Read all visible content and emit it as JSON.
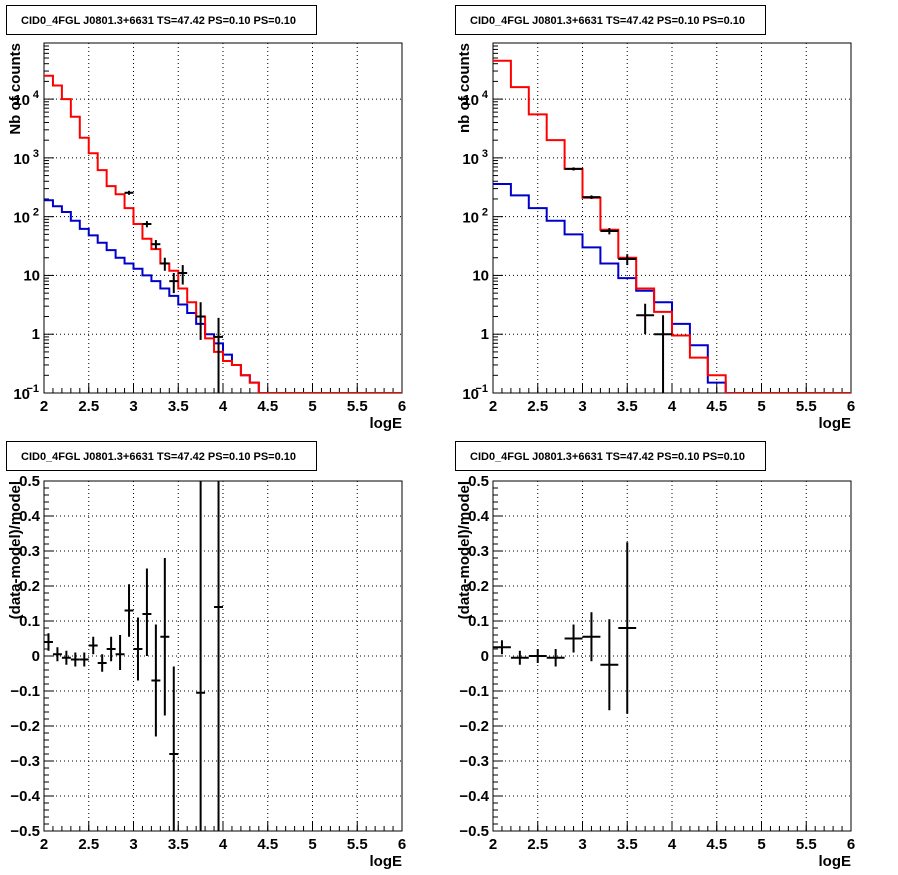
{
  "chart_data": [
    {
      "type": "line",
      "title": "CID0_4FGL J0801.3+6631 TS=47.42 PS=0.10 PS=0.10",
      "xlabel": "logE",
      "ylabel": "Nb of counts",
      "xlim": [
        2,
        6
      ],
      "ylim": [
        0.1,
        90000
      ],
      "log_y": true,
      "grid": true,
      "x_ticks": [
        "2",
        "2.5",
        "3",
        "3.5",
        "4",
        "4.5",
        "5",
        "5.5",
        "6"
      ],
      "y_ticks": [
        "10^-1",
        "1",
        "10",
        "10^2",
        "10^3",
        "10^4"
      ],
      "bin_edges": [
        2.0,
        2.1,
        2.2,
        2.3,
        2.4,
        2.5,
        2.6,
        2.7,
        2.8,
        2.9,
        3.0,
        3.1,
        3.2,
        3.3,
        3.4,
        3.5,
        3.6,
        3.7,
        3.8,
        3.9,
        4.0,
        4.1,
        4.2,
        4.3,
        4.4,
        4.5,
        4.6,
        4.7,
        4.8,
        4.9,
        5.0,
        5.1,
        5.2,
        5.3,
        5.4,
        5.5,
        5.6,
        5.7,
        5.8,
        5.9,
        6.0
      ],
      "series": [
        {
          "color": "#ff0000",
          "values": [
            25000,
            17000,
            10000,
            5000,
            2200,
            1200,
            620,
            330,
            240,
            140,
            75,
            42,
            28,
            16,
            12,
            6,
            3.5,
            2,
            0.85,
            0.5,
            0.35,
            0.3,
            0.2,
            0.15,
            0.1,
            0.1,
            0.1,
            0.1,
            0.1,
            0.1,
            0.1,
            0.1,
            0.1,
            0.1,
            0.1,
            0.1,
            0.1,
            0.1,
            0.1,
            0.1
          ]
        },
        {
          "color": "#0000cc",
          "values": [
            190,
            150,
            120,
            85,
            62,
            48,
            36,
            27,
            20,
            16,
            13,
            10,
            8,
            6,
            4.5,
            3.2,
            2.3,
            1.5,
            1.0,
            0.7,
            0.45,
            0.3,
            0.2,
            0.15,
            0.1,
            0.1,
            0.1,
            0.1,
            0.1,
            0.1,
            0.1,
            0.1,
            0.1,
            0.1,
            0.1,
            0.1,
            0.1,
            0.1,
            0.1,
            0.1
          ]
        }
      ],
      "points": [
        {
          "x": 2.95,
          "y": 255,
          "ylo": 235,
          "yhi": 275,
          "xerr": 0.05
        },
        {
          "x": 3.15,
          "y": 75,
          "ylo": 66,
          "yhi": 84,
          "xerr": 0.05
        },
        {
          "x": 3.25,
          "y": 34,
          "ylo": 28,
          "yhi": 40,
          "xerr": 0.05
        },
        {
          "x": 3.35,
          "y": 16,
          "ylo": 12,
          "yhi": 20,
          "xerr": 0.05
        },
        {
          "x": 3.45,
          "y": 8,
          "ylo": 5,
          "yhi": 11,
          "xerr": 0.05
        },
        {
          "x": 3.55,
          "y": 11,
          "ylo": 7,
          "yhi": 15,
          "xerr": 0.05
        },
        {
          "x": 3.75,
          "y": 2,
          "ylo": 0.8,
          "yhi": 3.5,
          "xerr": 0.05
        },
        {
          "x": 3.95,
          "y": 0.9,
          "ylo": 0.1,
          "yhi": 1.9,
          "xerr": 0.05
        }
      ]
    },
    {
      "type": "line",
      "title": "CID0_4FGL J0801.3+6631 TS=47.42 PS=0.10 PS=0.10",
      "xlabel": "logE",
      "ylabel": "nb of counts",
      "xlim": [
        2,
        6
      ],
      "ylim": [
        0.1,
        90000
      ],
      "log_y": true,
      "grid": true,
      "x_ticks": [
        "2",
        "2.5",
        "3",
        "3.5",
        "4",
        "4.5",
        "5",
        "5.5",
        "6"
      ],
      "y_ticks": [
        "10^-1",
        "1",
        "10",
        "10^2",
        "10^3",
        "10^4"
      ],
      "bin_edges": [
        2.0,
        2.2,
        2.4,
        2.6,
        2.8,
        3.0,
        3.2,
        3.4,
        3.6,
        3.8,
        4.0,
        4.2,
        4.4,
        4.6,
        4.8,
        5.0,
        5.2,
        5.4,
        5.6,
        5.8,
        6.0
      ],
      "series": [
        {
          "color": "#ff0000",
          "values": [
            45000,
            16000,
            5500,
            2000,
            650,
            210,
            60,
            20,
            6,
            2.4,
            0.95,
            0.4,
            0.2,
            0.1,
            0.1,
            0.1,
            0.1,
            0.1,
            0.1,
            0.1
          ]
        },
        {
          "color": "#0000cc",
          "values": [
            360,
            230,
            140,
            85,
            50,
            30,
            16,
            9,
            5.5,
            3.5,
            1.5,
            0.65,
            0.15,
            0.1,
            0.1,
            0.1,
            0.1,
            0.1,
            0.1,
            0.1
          ]
        }
      ],
      "points": [
        {
          "x": 2.9,
          "y": 650,
          "ylo": 610,
          "yhi": 690,
          "xerr": 0.1
        },
        {
          "x": 3.1,
          "y": 215,
          "ylo": 200,
          "yhi": 230,
          "xerr": 0.1
        },
        {
          "x": 3.3,
          "y": 57,
          "ylo": 50,
          "yhi": 64,
          "xerr": 0.1
        },
        {
          "x": 3.5,
          "y": 19,
          "ylo": 15,
          "yhi": 23,
          "xerr": 0.1
        },
        {
          "x": 3.7,
          "y": 2.1,
          "ylo": 1.0,
          "yhi": 3.3,
          "xerr": 0.1
        },
        {
          "x": 3.9,
          "y": 1.0,
          "ylo": 0.1,
          "yhi": 2.1,
          "xerr": 0.1
        }
      ]
    },
    {
      "type": "scatter",
      "title": "CID0_4FGL J0801.3+6631 TS=47.42 PS=0.10 PS=0.10",
      "xlabel": "logE",
      "ylabel": "(data-model)/model",
      "xlim": [
        2,
        6
      ],
      "ylim": [
        -0.5,
        0.5
      ],
      "log_y": false,
      "grid": true,
      "x_ticks": [
        "2",
        "2.5",
        "3",
        "3.5",
        "4",
        "4.5",
        "5",
        "5.5",
        "6"
      ],
      "y_ticks": [
        "−0.5",
        "−0.4",
        "−0.3",
        "−0.2",
        "−0.1",
        "0",
        "0.1",
        "0.2",
        "0.3",
        "0.4",
        "0.5"
      ],
      "points": [
        {
          "x": 2.05,
          "y": 0.04,
          "ylo": 0.015,
          "yhi": 0.065,
          "xerr": 0.05
        },
        {
          "x": 2.15,
          "y": 0.005,
          "ylo": -0.015,
          "yhi": 0.025,
          "xerr": 0.05
        },
        {
          "x": 2.25,
          "y": -0.005,
          "ylo": -0.025,
          "yhi": 0.015,
          "xerr": 0.05
        },
        {
          "x": 2.35,
          "y": -0.01,
          "ylo": -0.03,
          "yhi": 0.01,
          "xerr": 0.05
        },
        {
          "x": 2.45,
          "y": -0.01,
          "ylo": -0.03,
          "yhi": 0.01,
          "xerr": 0.05
        },
        {
          "x": 2.55,
          "y": 0.03,
          "ylo": 0.005,
          "yhi": 0.055,
          "xerr": 0.05
        },
        {
          "x": 2.65,
          "y": -0.02,
          "ylo": -0.045,
          "yhi": 0.005,
          "xerr": 0.05
        },
        {
          "x": 2.75,
          "y": 0.02,
          "ylo": -0.015,
          "yhi": 0.055,
          "xerr": 0.05
        },
        {
          "x": 2.85,
          "y": 0.005,
          "ylo": -0.04,
          "yhi": 0.06,
          "xerr": 0.05
        },
        {
          "x": 2.95,
          "y": 0.13,
          "ylo": 0.055,
          "yhi": 0.205,
          "xerr": 0.05
        },
        {
          "x": 3.05,
          "y": 0.02,
          "ylo": -0.07,
          "yhi": 0.11,
          "xerr": 0.05
        },
        {
          "x": 3.15,
          "y": 0.12,
          "ylo": 0.0,
          "yhi": 0.25,
          "xerr": 0.05
        },
        {
          "x": 3.25,
          "y": -0.07,
          "ylo": -0.23,
          "yhi": 0.09,
          "xerr": 0.05
        },
        {
          "x": 3.35,
          "y": 0.055,
          "ylo": -0.17,
          "yhi": 0.28,
          "xerr": 0.05
        },
        {
          "x": 3.45,
          "y": -0.28,
          "ylo": -0.5,
          "yhi": -0.03,
          "xerr": 0.05
        },
        {
          "x": 3.75,
          "y": -0.105,
          "ylo": -0.5,
          "yhi": 0.5,
          "xerr": 0.05
        },
        {
          "x": 3.95,
          "y": 0.14,
          "ylo": -0.5,
          "yhi": 0.5,
          "xerr": 0.05
        }
      ]
    },
    {
      "type": "scatter",
      "title": "CID0_4FGL J0801.3+6631 TS=47.42 PS=0.10 PS=0.10",
      "xlabel": "logE",
      "ylabel": "(data-model)/model",
      "xlim": [
        2,
        6
      ],
      "ylim": [
        -0.5,
        0.5
      ],
      "log_y": false,
      "grid": true,
      "x_ticks": [
        "2",
        "2.5",
        "3",
        "3.5",
        "4",
        "4.5",
        "5",
        "5.5",
        "6"
      ],
      "y_ticks": [
        "−0.5",
        "−0.4",
        "−0.3",
        "−0.2",
        "−0.1",
        "0",
        "0.1",
        "0.2",
        "0.3",
        "0.4",
        "0.5"
      ],
      "points": [
        {
          "x": 2.1,
          "y": 0.025,
          "ylo": 0.005,
          "yhi": 0.045,
          "xerr": 0.1
        },
        {
          "x": 2.3,
          "y": -0.005,
          "ylo": -0.025,
          "yhi": 0.015,
          "xerr": 0.1
        },
        {
          "x": 2.5,
          "y": 0.0,
          "ylo": -0.02,
          "yhi": 0.02,
          "xerr": 0.1
        },
        {
          "x": 2.7,
          "y": -0.005,
          "ylo": -0.03,
          "yhi": 0.02,
          "xerr": 0.1
        },
        {
          "x": 2.9,
          "y": 0.05,
          "ylo": 0.01,
          "yhi": 0.09,
          "xerr": 0.1
        },
        {
          "x": 3.1,
          "y": 0.055,
          "ylo": -0.015,
          "yhi": 0.125,
          "xerr": 0.1
        },
        {
          "x": 3.3,
          "y": -0.025,
          "ylo": -0.155,
          "yhi": 0.105,
          "xerr": 0.1
        },
        {
          "x": 3.5,
          "y": 0.08,
          "ylo": -0.165,
          "yhi": 0.325,
          "xerr": 0.1
        }
      ]
    }
  ]
}
